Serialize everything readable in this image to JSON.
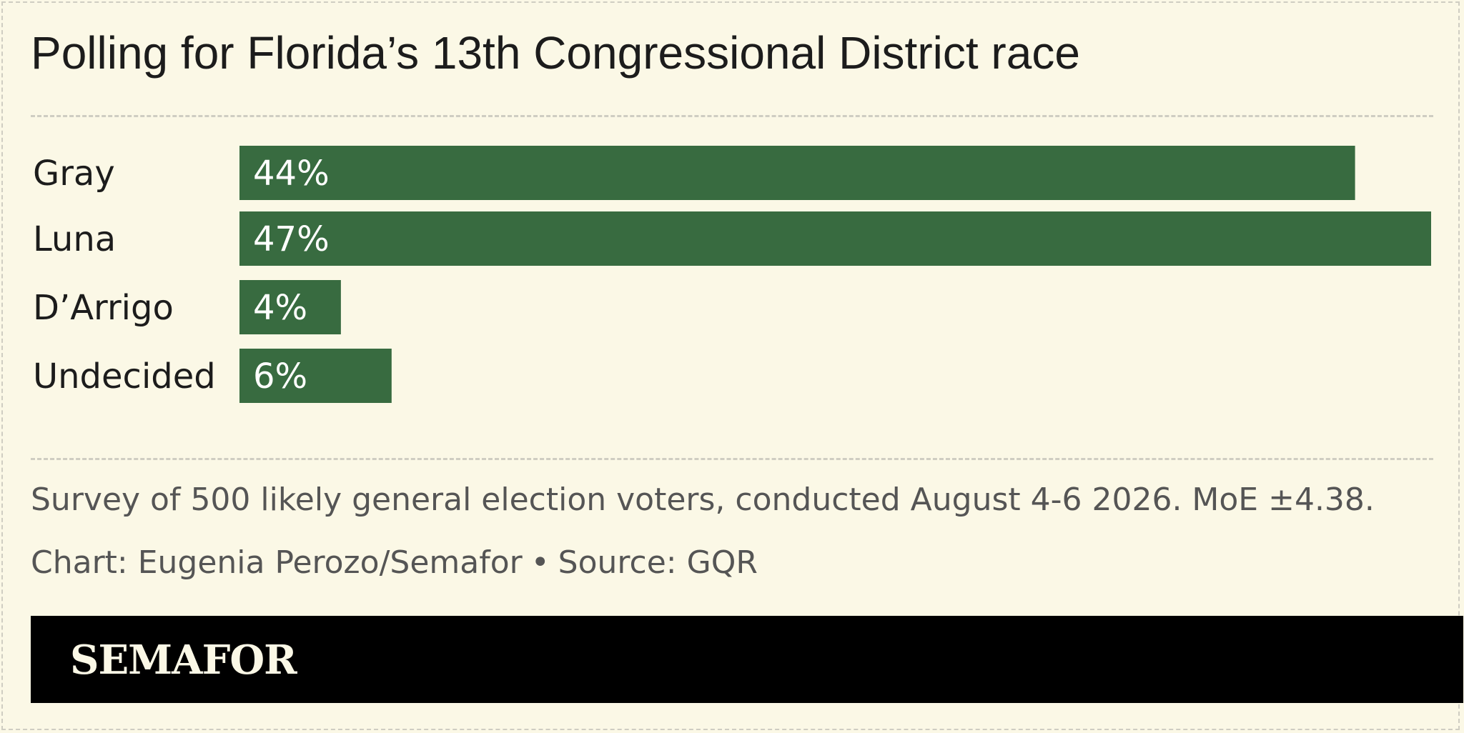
{
  "header": {
    "title": "Polling for Florida’s 13th Congressional District race"
  },
  "chart_data": {
    "type": "bar",
    "orientation": "horizontal",
    "title": "Polling for Florida’s 13th Congressional District race",
    "categories": [
      "Gray",
      "Luna",
      "D’Arrigo",
      "Undecided"
    ],
    "values": [
      44,
      47,
      4,
      6
    ],
    "value_labels": [
      "44%",
      "47%",
      "4%",
      "6%"
    ],
    "unit": "%",
    "xlim": [
      0,
      47
    ],
    "bar_color": "#386b40",
    "grid": false,
    "legend": "none"
  },
  "footer": {
    "survey_note": "Survey of 500 likely general election voters, conducted August 4-6 2026. MoE ±4.38.",
    "credit": "Chart: Eugenia Perozo/Semafor",
    "separator": "•",
    "source": "Source: GQR",
    "brand": "SEMAFOR"
  },
  "colors": {
    "background": "#fbf8e6",
    "bar": "#386b40",
    "brand_bar": "#000000"
  }
}
